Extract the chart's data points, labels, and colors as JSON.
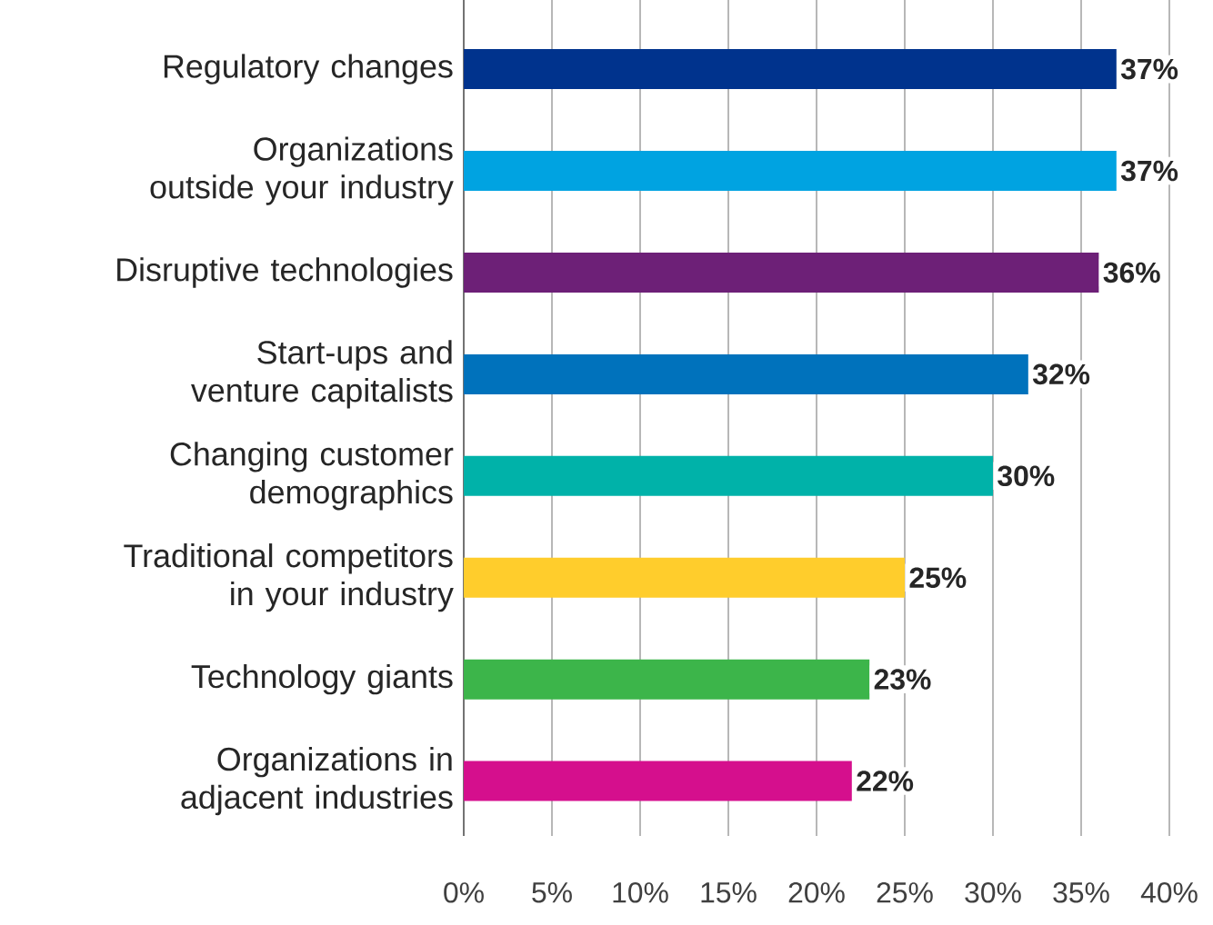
{
  "chart_data": {
    "type": "bar",
    "orientation": "horizontal",
    "categories": [
      "Regulatory changes",
      "Organizations outside your industry",
      "Disruptive technologies",
      "Start-ups and venture capitalists",
      "Changing customer demographics",
      "Traditional competitors in your industry",
      "Technology giants",
      "Organizations in adjacent industries"
    ],
    "values": [
      37,
      37,
      36,
      32,
      30,
      25,
      23,
      22
    ],
    "colors": [
      "#00338d",
      "#00a3e1",
      "#6d2077",
      "#0072bc",
      "#00b2a9",
      "#ffcd2c",
      "#3cb54a",
      "#d50f8d"
    ],
    "value_labels": [
      "37%",
      "37%",
      "36%",
      "32%",
      "30%",
      "25%",
      "23%",
      "22%"
    ],
    "xlim": [
      0,
      40
    ],
    "xticks": [
      {
        "value": 0,
        "label": "0%"
      },
      {
        "value": 5,
        "label": "5%"
      },
      {
        "value": 10,
        "label": "10%"
      },
      {
        "value": 15,
        "label": "15%"
      },
      {
        "value": 20,
        "label": "20%"
      },
      {
        "value": 25,
        "label": "25%"
      },
      {
        "value": 30,
        "label": "30%"
      },
      {
        "value": 35,
        "label": "35%"
      },
      {
        "value": 40,
        "label": "40%"
      }
    ],
    "grid": "x"
  }
}
